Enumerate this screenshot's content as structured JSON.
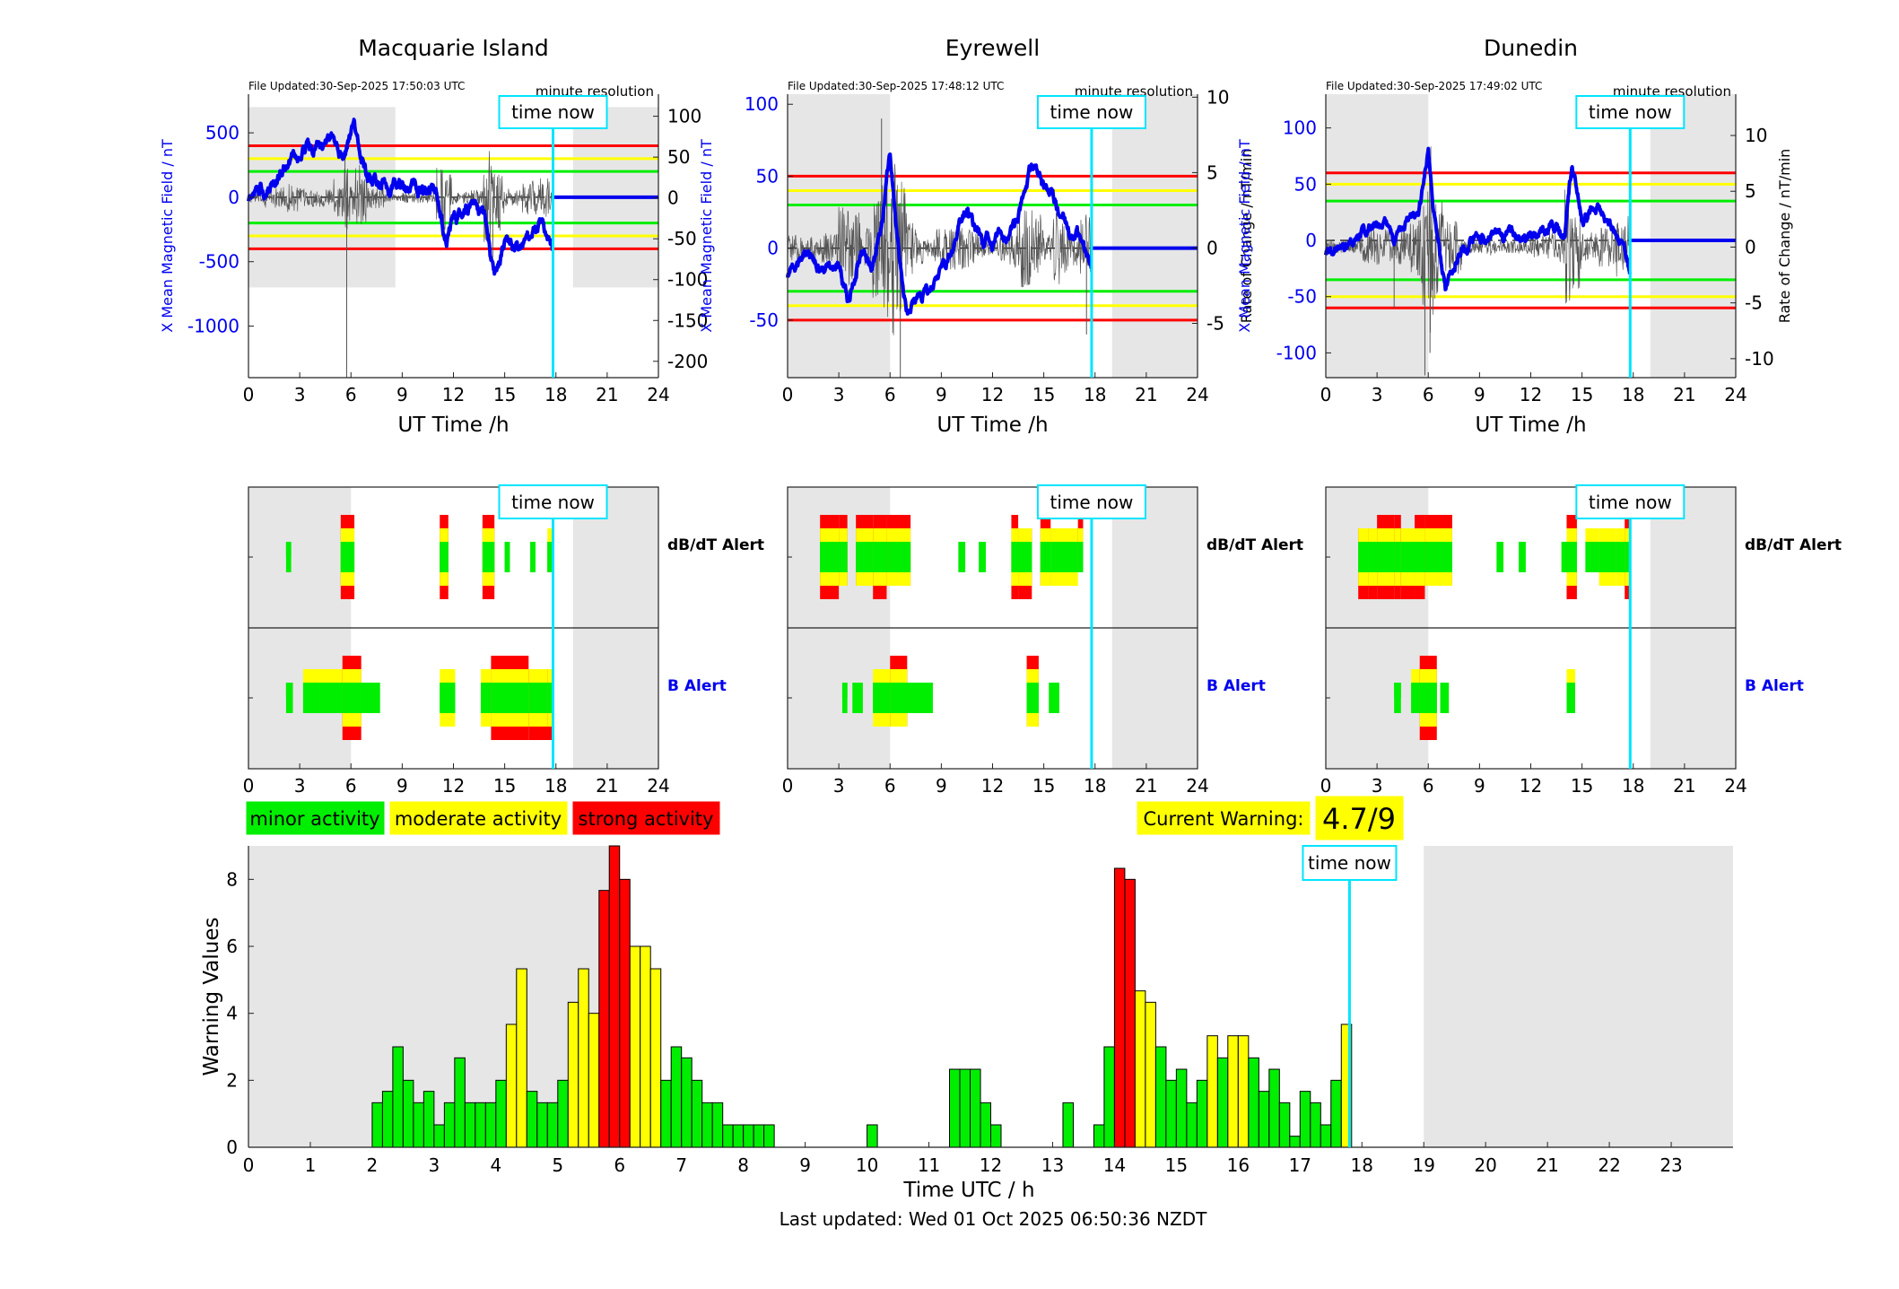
{
  "stations": [
    {
      "title": "Macquarie Island",
      "file_updated": "File Updated:30-Sep-2025 17:50:03 UTC",
      "resolution": "minute resolution",
      "ylabel_left": "X Mean Magnetic Field / nT",
      "ylabel_right": "",
      "left_ticks": [
        500,
        0,
        -500,
        -1000
      ],
      "right_ticks": [
        100,
        50,
        0,
        -50,
        -100,
        -150,
        -200
      ],
      "now_label": "time now",
      "time_now": 17.83
    },
    {
      "title": "Eyrewell",
      "file_updated": "File Updated:30-Sep-2025 17:48:12 UTC",
      "resolution": "minute resolution",
      "ylabel_left": "X Mean Magnetic Field / nT",
      "ylabel_right": "Rate of Change / nT/min",
      "left_ticks": [
        100,
        50,
        0,
        -50
      ],
      "right_ticks": [
        10,
        5,
        0,
        -5
      ],
      "now_label": "time now",
      "time_now": 17.8
    },
    {
      "title": "Dunedin",
      "file_updated": "File Updated:30-Sep-2025 17:49:02 UTC",
      "resolution": "minute resolution",
      "ylabel_left": "X Mean Magnetic Field / nT",
      "ylabel_right": "Rate of Change / nT/min",
      "left_ticks": [
        100,
        50,
        0,
        -50,
        -100
      ],
      "right_ticks": [
        10,
        5,
        0,
        -5,
        -10
      ],
      "now_label": "time now",
      "time_now": 17.82
    }
  ],
  "axes": {
    "time_xlabel": "UT Time /h",
    "time_ticks": [
      0,
      3,
      6,
      9,
      12,
      15,
      18,
      21,
      24
    ]
  },
  "alert_panel": {
    "dbdt_label": "dB/dT Alert",
    "b_label": "B Alert"
  },
  "legend": {
    "minor": "minor activity",
    "moderate": "moderate activity",
    "strong": "strong activity"
  },
  "current_warning": {
    "label": "Current Warning:",
    "value": "4.7/9"
  },
  "colors": {
    "minor": "#00ee00",
    "moderate": "#ffff00",
    "strong": "#ff0000",
    "field_line": "#0000ee",
    "time_now": "#00e5ff",
    "shade": "#e6e6e6"
  },
  "chart_data": {
    "type": "bar",
    "xlabel": "Time UTC / h",
    "ylabel": "Warning Values",
    "ylim": [
      0,
      9
    ],
    "xlim": [
      0,
      24
    ],
    "x_ticks": [
      0,
      1,
      2,
      3,
      4,
      5,
      6,
      7,
      8,
      9,
      10,
      11,
      12,
      13,
      14,
      15,
      16,
      17,
      18,
      19,
      20,
      21,
      22,
      23
    ],
    "y_ticks": [
      0,
      2,
      4,
      6,
      8
    ],
    "bin_width_h": 0.1667,
    "bins": [
      [
        2.0,
        1.33,
        "g"
      ],
      [
        2.167,
        1.67,
        "g"
      ],
      [
        2.333,
        3.0,
        "g"
      ],
      [
        2.5,
        2.0,
        "g"
      ],
      [
        2.667,
        1.33,
        "g"
      ],
      [
        2.833,
        1.67,
        "g"
      ],
      [
        3.0,
        0.67,
        "g"
      ],
      [
        3.167,
        1.33,
        "g"
      ],
      [
        3.333,
        2.67,
        "g"
      ],
      [
        3.5,
        1.33,
        "g"
      ],
      [
        3.667,
        1.33,
        "g"
      ],
      [
        3.833,
        1.33,
        "g"
      ],
      [
        4.0,
        2.0,
        "g"
      ],
      [
        4.167,
        3.67,
        "y"
      ],
      [
        4.333,
        5.33,
        "y"
      ],
      [
        4.5,
        1.67,
        "g"
      ],
      [
        4.667,
        1.33,
        "g"
      ],
      [
        4.833,
        1.33,
        "g"
      ],
      [
        5.0,
        2.0,
        "g"
      ],
      [
        5.167,
        4.33,
        "y"
      ],
      [
        5.333,
        5.33,
        "y"
      ],
      [
        5.5,
        4.0,
        "y"
      ],
      [
        5.667,
        7.67,
        "r"
      ],
      [
        5.833,
        9.0,
        "r"
      ],
      [
        6.0,
        8.0,
        "r"
      ],
      [
        6.167,
        6.0,
        "y"
      ],
      [
        6.333,
        6.0,
        "y"
      ],
      [
        6.5,
        5.33,
        "y"
      ],
      [
        6.667,
        2.0,
        "g"
      ],
      [
        6.833,
        3.0,
        "g"
      ],
      [
        7.0,
        2.67,
        "g"
      ],
      [
        7.167,
        2.0,
        "g"
      ],
      [
        7.333,
        1.33,
        "g"
      ],
      [
        7.5,
        1.33,
        "g"
      ],
      [
        7.667,
        0.67,
        "g"
      ],
      [
        7.833,
        0.67,
        "g"
      ],
      [
        8.0,
        0.67,
        "g"
      ],
      [
        8.167,
        0.67,
        "g"
      ],
      [
        8.333,
        0.67,
        "g"
      ],
      [
        10.0,
        0.67,
        "g"
      ],
      [
        11.333,
        2.33,
        "g"
      ],
      [
        11.5,
        2.33,
        "g"
      ],
      [
        11.667,
        2.33,
        "g"
      ],
      [
        11.833,
        1.33,
        "g"
      ],
      [
        12.0,
        0.67,
        "g"
      ],
      [
        13.167,
        1.33,
        "g"
      ],
      [
        13.667,
        0.67,
        "g"
      ],
      [
        13.833,
        3.0,
        "g"
      ],
      [
        14.0,
        8.33,
        "r"
      ],
      [
        14.167,
        8.0,
        "r"
      ],
      [
        14.333,
        4.67,
        "y"
      ],
      [
        14.5,
        4.33,
        "y"
      ],
      [
        14.667,
        3.0,
        "g"
      ],
      [
        14.833,
        2.0,
        "g"
      ],
      [
        15.0,
        2.33,
        "g"
      ],
      [
        15.167,
        1.33,
        "g"
      ],
      [
        15.333,
        2.0,
        "g"
      ],
      [
        15.5,
        3.33,
        "y"
      ],
      [
        15.667,
        2.67,
        "g"
      ],
      [
        15.833,
        3.33,
        "y"
      ],
      [
        16.0,
        3.33,
        "y"
      ],
      [
        16.167,
        2.67,
        "g"
      ],
      [
        16.333,
        1.67,
        "g"
      ],
      [
        16.5,
        2.33,
        "g"
      ],
      [
        16.667,
        1.33,
        "g"
      ],
      [
        16.833,
        0.33,
        "g"
      ],
      [
        17.0,
        1.67,
        "g"
      ],
      [
        17.167,
        1.33,
        "g"
      ],
      [
        17.333,
        0.67,
        "g"
      ],
      [
        17.5,
        2.0,
        "g"
      ],
      [
        17.667,
        3.67,
        "y"
      ]
    ],
    "time_now": 17.8,
    "time_now_label": "time now",
    "footer": "Last updated: Wed 01 Oct 2025 06:50:36 NZDT"
  }
}
